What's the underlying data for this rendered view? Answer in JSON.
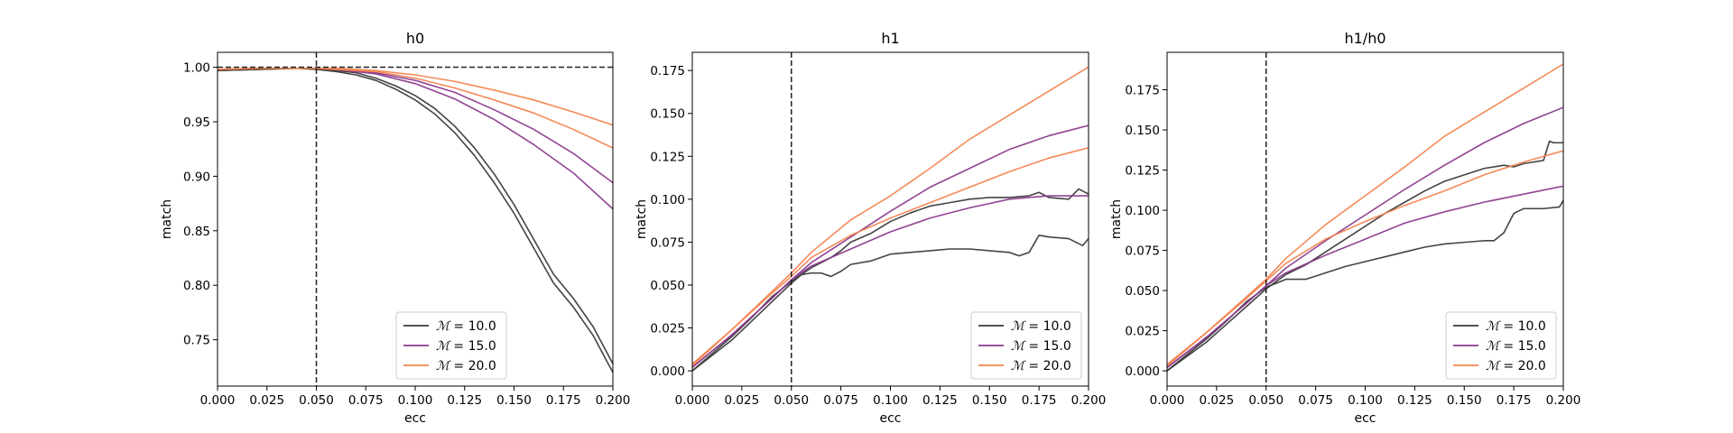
{
  "chart_data": [
    {
      "type": "line",
      "title": "h0",
      "xlabel": "ecc",
      "ylabel": "match",
      "xlim": [
        0.0,
        0.2
      ],
      "ylim": [
        0.7075,
        1.0137
      ],
      "xticks": [
        "0.000",
        "0.025",
        "0.050",
        "0.075",
        "0.100",
        "0.125",
        "0.150",
        "0.175",
        "0.200"
      ],
      "yticks": [
        "0.75",
        "0.80",
        "0.85",
        "0.90",
        "0.95",
        "1.00"
      ],
      "vline": 0.05,
      "hline": 1.0,
      "legend": {
        "position": "lower-center"
      },
      "series": [
        {
          "name": "$\\mathcal{M} = 10.0$",
          "color": "#3a3a3a",
          "legend": true,
          "x": [
            0,
            0.02,
            0.04,
            0.05,
            0.06,
            0.07,
            0.08,
            0.09,
            0.1,
            0.11,
            0.12,
            0.13,
            0.14,
            0.15,
            0.16,
            0.17,
            0.18,
            0.19,
            0.2
          ],
          "y": [
            0.997,
            0.998,
            0.999,
            0.999,
            0.997,
            0.995,
            0.99,
            0.983,
            0.974,
            0.962,
            0.946,
            0.926,
            0.902,
            0.874,
            0.842,
            0.81,
            0.788,
            0.762,
            0.728
          ]
        },
        {
          "name": "$\\mathcal{M} = 10.0$",
          "color": "#3a3a3a",
          "legend": false,
          "x": [
            0,
            0.02,
            0.04,
            0.05,
            0.06,
            0.07,
            0.08,
            0.09,
            0.1,
            0.11,
            0.12,
            0.13,
            0.14,
            0.15,
            0.16,
            0.17,
            0.18,
            0.19,
            0.2
          ],
          "y": [
            0.997,
            0.998,
            0.999,
            0.998,
            0.996,
            0.993,
            0.988,
            0.98,
            0.97,
            0.957,
            0.94,
            0.919,
            0.894,
            0.866,
            0.834,
            0.802,
            0.78,
            0.754,
            0.72
          ]
        },
        {
          "name": "$\\mathcal{M} = 15.0$",
          "color": "#8b3a8e",
          "legend": true,
          "x": [
            0,
            0.02,
            0.04,
            0.05,
            0.06,
            0.08,
            0.1,
            0.12,
            0.14,
            0.16,
            0.18,
            0.2
          ],
          "y": [
            0.998,
            0.999,
            0.999,
            0.999,
            0.998,
            0.995,
            0.988,
            0.977,
            0.961,
            0.943,
            0.921,
            0.894
          ]
        },
        {
          "name": "$\\mathcal{M} = 15.0$",
          "color": "#8b3a8e",
          "legend": false,
          "x": [
            0,
            0.02,
            0.04,
            0.05,
            0.06,
            0.08,
            0.1,
            0.12,
            0.14,
            0.16,
            0.18,
            0.2
          ],
          "y": [
            0.998,
            0.999,
            0.999,
            0.999,
            0.998,
            0.994,
            0.985,
            0.971,
            0.952,
            0.929,
            0.903,
            0.87
          ]
        },
        {
          "name": "$\\mathcal{M} = 20.0$",
          "color": "#f3844f",
          "legend": true,
          "x": [
            0,
            0.02,
            0.04,
            0.05,
            0.06,
            0.08,
            0.1,
            0.12,
            0.14,
            0.16,
            0.18,
            0.2
          ],
          "y": [
            0.998,
            0.999,
            0.999,
            0.999,
            0.999,
            0.997,
            0.993,
            0.987,
            0.979,
            0.97,
            0.959,
            0.947
          ]
        },
        {
          "name": "$\\mathcal{M} = 20.0$",
          "color": "#f3844f",
          "legend": false,
          "x": [
            0,
            0.02,
            0.04,
            0.05,
            0.06,
            0.08,
            0.1,
            0.12,
            0.14,
            0.16,
            0.18,
            0.2
          ],
          "y": [
            0.998,
            0.999,
            0.999,
            0.999,
            0.998,
            0.996,
            0.99,
            0.981,
            0.97,
            0.958,
            0.943,
            0.926
          ]
        }
      ]
    },
    {
      "type": "line",
      "title": "h1",
      "xlabel": "ecc",
      "ylabel": "match",
      "xlim": [
        0.0,
        0.2
      ],
      "ylim": [
        -0.0089,
        0.1856
      ],
      "xticks": [
        "0.000",
        "0.025",
        "0.050",
        "0.075",
        "0.100",
        "0.125",
        "0.150",
        "0.175",
        "0.200"
      ],
      "yticks": [
        "0.000",
        "0.025",
        "0.050",
        "0.075",
        "0.100",
        "0.125",
        "0.150",
        "0.175"
      ],
      "vline": 0.05,
      "legend": {
        "position": "lower-right"
      },
      "series": [
        {
          "name": "$\\mathcal{M} = 10.0$",
          "color": "#3a3a3a",
          "legend": true,
          "x": [
            0,
            0.01,
            0.02,
            0.03,
            0.04,
            0.05,
            0.055,
            0.06,
            0.065,
            0.07,
            0.075,
            0.08,
            0.09,
            0.1,
            0.11,
            0.12,
            0.13,
            0.14,
            0.15,
            0.16,
            0.17,
            0.175,
            0.18,
            0.19,
            0.195,
            0.2
          ],
          "y": [
            0.0,
            0.009,
            0.018,
            0.029,
            0.04,
            0.051,
            0.056,
            0.06,
            0.063,
            0.066,
            0.07,
            0.075,
            0.08,
            0.087,
            0.092,
            0.096,
            0.098,
            0.1,
            0.101,
            0.101,
            0.102,
            0.104,
            0.101,
            0.1,
            0.106,
            0.103
          ]
        },
        {
          "name": "$\\mathcal{M} = 10.0$",
          "color": "#3a3a3a",
          "legend": false,
          "x": [
            0,
            0.01,
            0.02,
            0.03,
            0.04,
            0.05,
            0.055,
            0.06,
            0.065,
            0.07,
            0.075,
            0.08,
            0.09,
            0.1,
            0.11,
            0.12,
            0.13,
            0.14,
            0.15,
            0.16,
            0.165,
            0.17,
            0.175,
            0.18,
            0.19,
            0.197,
            0.2
          ],
          "y": [
            0.0,
            0.01,
            0.02,
            0.031,
            0.043,
            0.052,
            0.056,
            0.057,
            0.057,
            0.055,
            0.058,
            0.062,
            0.064,
            0.068,
            0.069,
            0.07,
            0.071,
            0.071,
            0.07,
            0.069,
            0.067,
            0.069,
            0.079,
            0.078,
            0.077,
            0.073,
            0.077
          ]
        },
        {
          "name": "$\\mathcal{M} = 15.0$",
          "color": "#8b3a8e",
          "legend": true,
          "x": [
            0,
            0.02,
            0.04,
            0.05,
            0.06,
            0.08,
            0.1,
            0.12,
            0.14,
            0.16,
            0.18,
            0.2
          ],
          "y": [
            0.002,
            0.021,
            0.042,
            0.053,
            0.063,
            0.078,
            0.093,
            0.107,
            0.118,
            0.129,
            0.137,
            0.143
          ]
        },
        {
          "name": "$\\mathcal{M} = 15.0$",
          "color": "#8b3a8e",
          "legend": false,
          "x": [
            0,
            0.02,
            0.04,
            0.05,
            0.06,
            0.08,
            0.1,
            0.12,
            0.14,
            0.16,
            0.18,
            0.2
          ],
          "y": [
            0.002,
            0.021,
            0.042,
            0.053,
            0.061,
            0.071,
            0.081,
            0.089,
            0.095,
            0.1,
            0.102,
            0.102
          ]
        },
        {
          "name": "$\\mathcal{M} = 20.0$",
          "color": "#f3844f",
          "legend": true,
          "x": [
            0,
            0.02,
            0.04,
            0.05,
            0.06,
            0.08,
            0.1,
            0.12,
            0.14,
            0.16,
            0.18,
            0.2
          ],
          "y": [
            0.003,
            0.024,
            0.046,
            0.057,
            0.069,
            0.088,
            0.102,
            0.118,
            0.135,
            0.149,
            0.163,
            0.177
          ]
        },
        {
          "name": "$\\mathcal{M} = 20.0$",
          "color": "#f3844f",
          "legend": false,
          "x": [
            0,
            0.02,
            0.04,
            0.05,
            0.06,
            0.08,
            0.1,
            0.12,
            0.14,
            0.16,
            0.18,
            0.2
          ],
          "y": [
            0.004,
            0.024,
            0.045,
            0.055,
            0.066,
            0.079,
            0.089,
            0.098,
            0.107,
            0.116,
            0.124,
            0.13
          ]
        }
      ]
    },
    {
      "type": "line",
      "title": "h1/h0",
      "xlabel": "ecc",
      "ylabel": "match",
      "xlim": [
        0.0,
        0.2
      ],
      "ylim": [
        -0.0095,
        0.1983
      ],
      "xticks": [
        "0.000",
        "0.025",
        "0.050",
        "0.075",
        "0.100",
        "0.125",
        "0.150",
        "0.175",
        "0.200"
      ],
      "yticks": [
        "0.000",
        "0.025",
        "0.050",
        "0.075",
        "0.100",
        "0.125",
        "0.150",
        "0.175"
      ],
      "vline": 0.05,
      "legend": {
        "position": "lower-right"
      },
      "series": [
        {
          "name": "$\\mathcal{M} = 10.0$",
          "color": "#3a3a3a",
          "legend": true,
          "x": [
            0,
            0.01,
            0.02,
            0.03,
            0.04,
            0.05,
            0.06,
            0.07,
            0.08,
            0.09,
            0.1,
            0.11,
            0.12,
            0.13,
            0.14,
            0.15,
            0.16,
            0.17,
            0.175,
            0.18,
            0.19,
            0.193,
            0.195,
            0.2
          ],
          "y": [
            0.0,
            0.009,
            0.018,
            0.029,
            0.04,
            0.051,
            0.06,
            0.066,
            0.074,
            0.082,
            0.09,
            0.098,
            0.105,
            0.112,
            0.118,
            0.122,
            0.126,
            0.128,
            0.127,
            0.129,
            0.131,
            0.143,
            0.142,
            0.142
          ]
        },
        {
          "name": "$\\mathcal{M} = 10.0$",
          "color": "#3a3a3a",
          "legend": false,
          "x": [
            0,
            0.01,
            0.02,
            0.03,
            0.04,
            0.05,
            0.06,
            0.07,
            0.08,
            0.09,
            0.1,
            0.11,
            0.12,
            0.13,
            0.14,
            0.15,
            0.16,
            0.165,
            0.17,
            0.175,
            0.18,
            0.19,
            0.198,
            0.2
          ],
          "y": [
            0.0,
            0.01,
            0.02,
            0.031,
            0.043,
            0.052,
            0.057,
            0.057,
            0.061,
            0.065,
            0.068,
            0.071,
            0.074,
            0.077,
            0.079,
            0.08,
            0.081,
            0.081,
            0.086,
            0.098,
            0.101,
            0.101,
            0.102,
            0.106
          ]
        },
        {
          "name": "$\\mathcal{M} = 15.0$",
          "color": "#8b3a8e",
          "legend": true,
          "x": [
            0,
            0.02,
            0.04,
            0.05,
            0.06,
            0.08,
            0.1,
            0.12,
            0.14,
            0.16,
            0.18,
            0.2
          ],
          "y": [
            0.002,
            0.021,
            0.042,
            0.053,
            0.064,
            0.081,
            0.097,
            0.113,
            0.128,
            0.142,
            0.154,
            0.164
          ]
        },
        {
          "name": "$\\mathcal{M} = 15.0$",
          "color": "#8b3a8e",
          "legend": false,
          "x": [
            0,
            0.02,
            0.04,
            0.05,
            0.06,
            0.08,
            0.1,
            0.12,
            0.14,
            0.16,
            0.18,
            0.2
          ],
          "y": [
            0.002,
            0.021,
            0.042,
            0.053,
            0.061,
            0.072,
            0.082,
            0.092,
            0.099,
            0.105,
            0.11,
            0.115
          ]
        },
        {
          "name": "$\\mathcal{M} = 20.0$",
          "color": "#f3844f",
          "legend": true,
          "x": [
            0,
            0.02,
            0.04,
            0.05,
            0.06,
            0.08,
            0.1,
            0.12,
            0.14,
            0.16,
            0.18,
            0.2
          ],
          "y": [
            0.003,
            0.024,
            0.046,
            0.057,
            0.07,
            0.091,
            0.109,
            0.127,
            0.146,
            0.161,
            0.176,
            0.191
          ]
        },
        {
          "name": "$\\mathcal{M} = 20.0$",
          "color": "#f3844f",
          "legend": false,
          "x": [
            0,
            0.02,
            0.04,
            0.05,
            0.06,
            0.08,
            0.1,
            0.12,
            0.14,
            0.16,
            0.18,
            0.2
          ],
          "y": [
            0.004,
            0.024,
            0.045,
            0.056,
            0.067,
            0.082,
            0.093,
            0.103,
            0.112,
            0.122,
            0.13,
            0.137
          ]
        }
      ]
    }
  ]
}
